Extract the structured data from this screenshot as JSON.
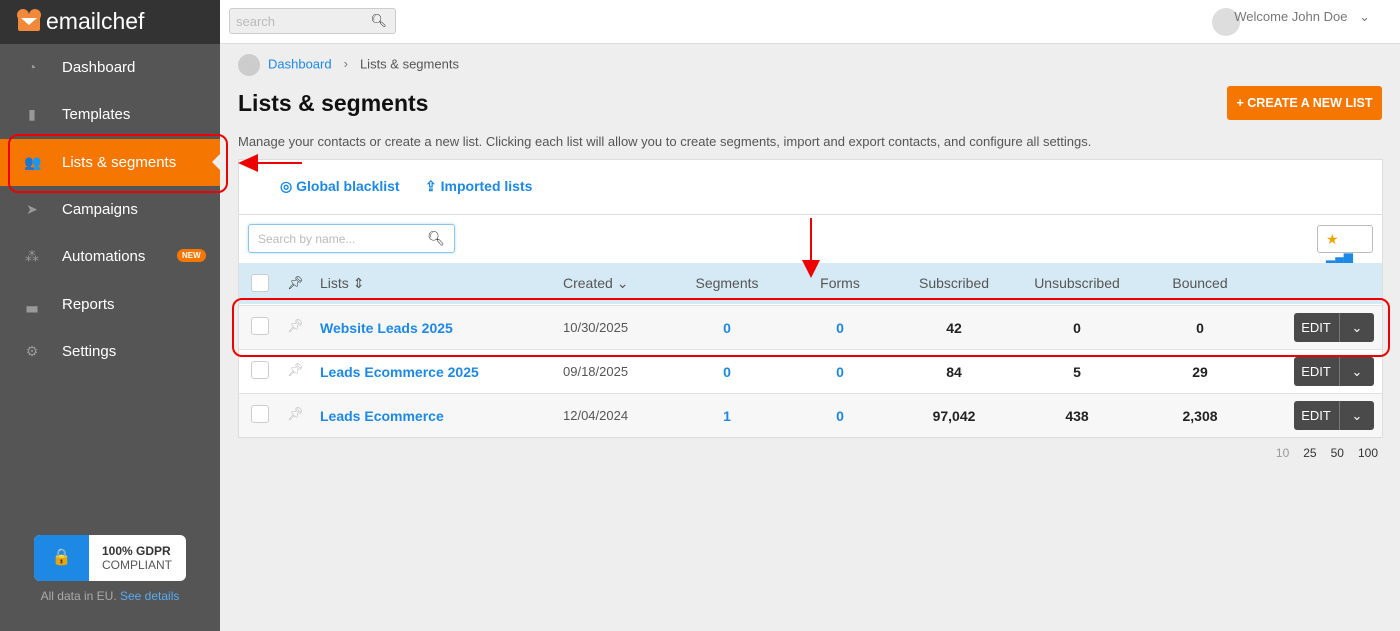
{
  "brand": {
    "name": "emailchef",
    "color": "#f57600"
  },
  "sidebar": {
    "items": [
      {
        "label": "Dashboard",
        "icon": "gauge-icon"
      },
      {
        "label": "Templates",
        "icon": "file-icon"
      },
      {
        "label": "Lists & segments",
        "icon": "users-icon",
        "active": true
      },
      {
        "label": "Campaigns",
        "icon": "paper-plane-icon"
      },
      {
        "label": "Automations",
        "icon": "sitemap-icon",
        "badge": "NEW"
      },
      {
        "label": "Reports",
        "icon": "chart-area-icon"
      },
      {
        "label": "Settings",
        "icon": "gears-icon"
      }
    ],
    "gdpr": {
      "title": "100% GDPR",
      "subtitle": "COMPLIANT",
      "note": "All data in EU.",
      "link": "See details"
    }
  },
  "topbar": {
    "search_placeholder": "search",
    "welcome": "Welcome John Doe"
  },
  "breadcrumb": {
    "home": "Dashboard",
    "current": "Lists & segments"
  },
  "page": {
    "title": "Lists & segments",
    "description": "Manage your contacts or create a new list. Clicking each list will allow you to create segments, import and export contacts, and configure all settings.",
    "create_button": "+ CREATE A NEW LIST"
  },
  "tabs": {
    "blacklist": "Global blacklist",
    "imported": "Imported lists"
  },
  "table": {
    "search_placeholder": "Search by name...",
    "headers": {
      "lists": "Lists",
      "created": "Created",
      "segments": "Segments",
      "forms": "Forms",
      "subscribed": "Subscribed",
      "unsubscribed": "Unsubscribed",
      "bounced": "Bounced"
    },
    "rows": [
      {
        "name": "Website Leads 2025",
        "created": "10/30/2025",
        "segments": "0",
        "forms": "0",
        "subscribed": "42",
        "unsubscribed": "0",
        "bounced": "0",
        "edit": "EDIT"
      },
      {
        "name": "Leads Ecommerce 2025",
        "created": "09/18/2025",
        "segments": "0",
        "forms": "0",
        "subscribed": "84",
        "unsubscribed": "5",
        "bounced": "29",
        "edit": "EDIT"
      },
      {
        "name": "Leads Ecommerce",
        "created": "12/04/2024",
        "segments": "1",
        "forms": "0",
        "subscribed": "97,042",
        "unsubscribed": "438",
        "bounced": "2,308",
        "edit": "EDIT"
      }
    ]
  },
  "pagination": {
    "sizes": [
      "10",
      "25",
      "50",
      "100"
    ],
    "selected": "10"
  }
}
